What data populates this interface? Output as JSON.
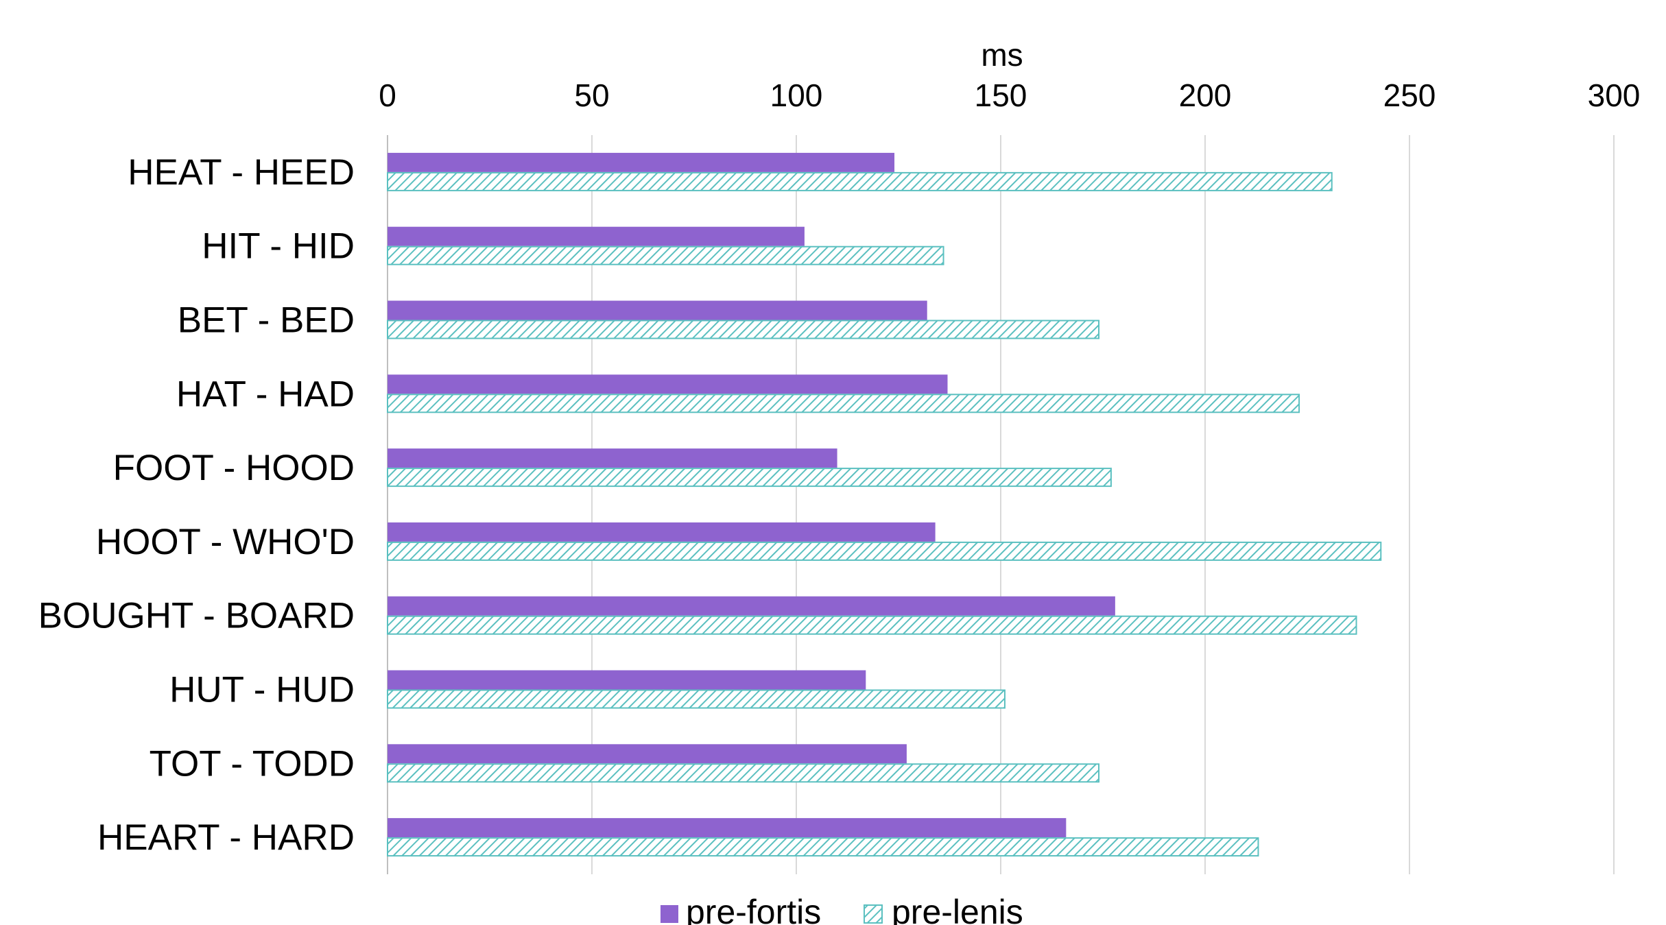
{
  "chart_data": {
    "type": "bar",
    "orientation": "horizontal",
    "xlabel": "ms",
    "xlim": [
      0,
      300
    ],
    "xticks": [
      0,
      50,
      100,
      150,
      200,
      250,
      300
    ],
    "x_axis_position": "top",
    "grid": true,
    "legend_position": "bottom",
    "categories": [
      "HEAT - HEED",
      "HIT - HID",
      "BET - BED",
      "HAT - HAD",
      "FOOT - HOOD",
      "HOOT - WHO'D",
      "BOUGHT - BOARD",
      "HUT - HUD",
      "TOT - TODD",
      "HEART - HARD"
    ],
    "series": [
      {
        "name": "pre-fortis",
        "color": "#8E63CF",
        "pattern": "solid",
        "values": [
          124,
          102,
          132,
          137,
          110,
          134,
          178,
          117,
          127,
          166
        ]
      },
      {
        "name": "pre-lenis",
        "color": "#5BC0C0",
        "pattern": "hatched",
        "values": [
          231,
          136,
          174,
          223,
          177,
          243,
          237,
          151,
          174,
          213
        ]
      }
    ]
  }
}
